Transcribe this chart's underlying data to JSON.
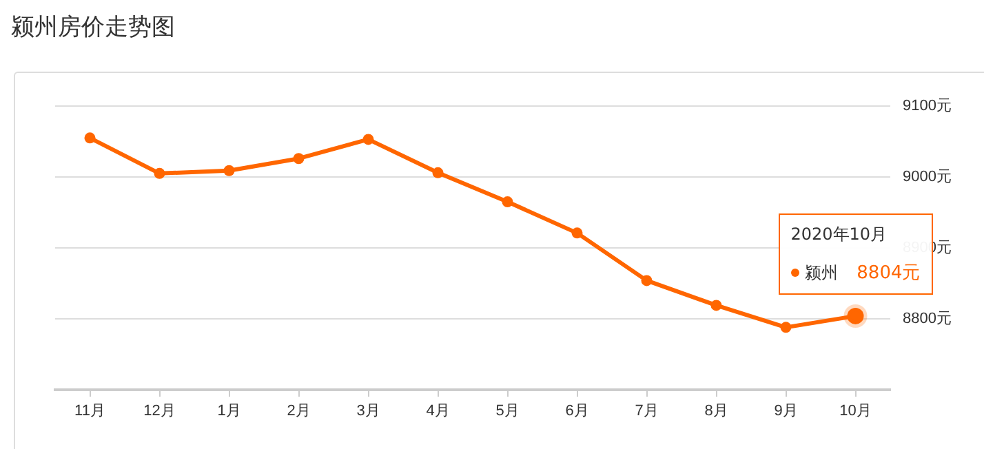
{
  "chart_data": {
    "type": "line",
    "title": "颍州房价走势图",
    "categories": [
      "11月",
      "12月",
      "1月",
      "2月",
      "3月",
      "4月",
      "5月",
      "6月",
      "7月",
      "8月",
      "9月",
      "10月"
    ],
    "series": [
      {
        "name": "颍州",
        "color": "#ff6600",
        "values": [
          9055,
          9005,
          9009,
          9026,
          9053,
          9006,
          8965,
          8921,
          8854,
          8819,
          8788,
          8804
        ],
        "value_labels": [
          null,
          null,
          null,
          null,
          null,
          null,
          null,
          null,
          null,
          null,
          null,
          "8804元"
        ]
      }
    ],
    "ylim": [
      8700,
      9100
    ],
    "yticks": [
      {
        "value": 8800,
        "label": "8800元"
      },
      {
        "value": 8900,
        "label": "8900元"
      },
      {
        "value": 9000,
        "label": "9000元"
      },
      {
        "value": 9100,
        "label": "9100元"
      }
    ],
    "grid": "y",
    "marker": "circle",
    "line_style": "solid",
    "legend": "right",
    "annotations": [
      "2020年10月"
    ]
  }
}
